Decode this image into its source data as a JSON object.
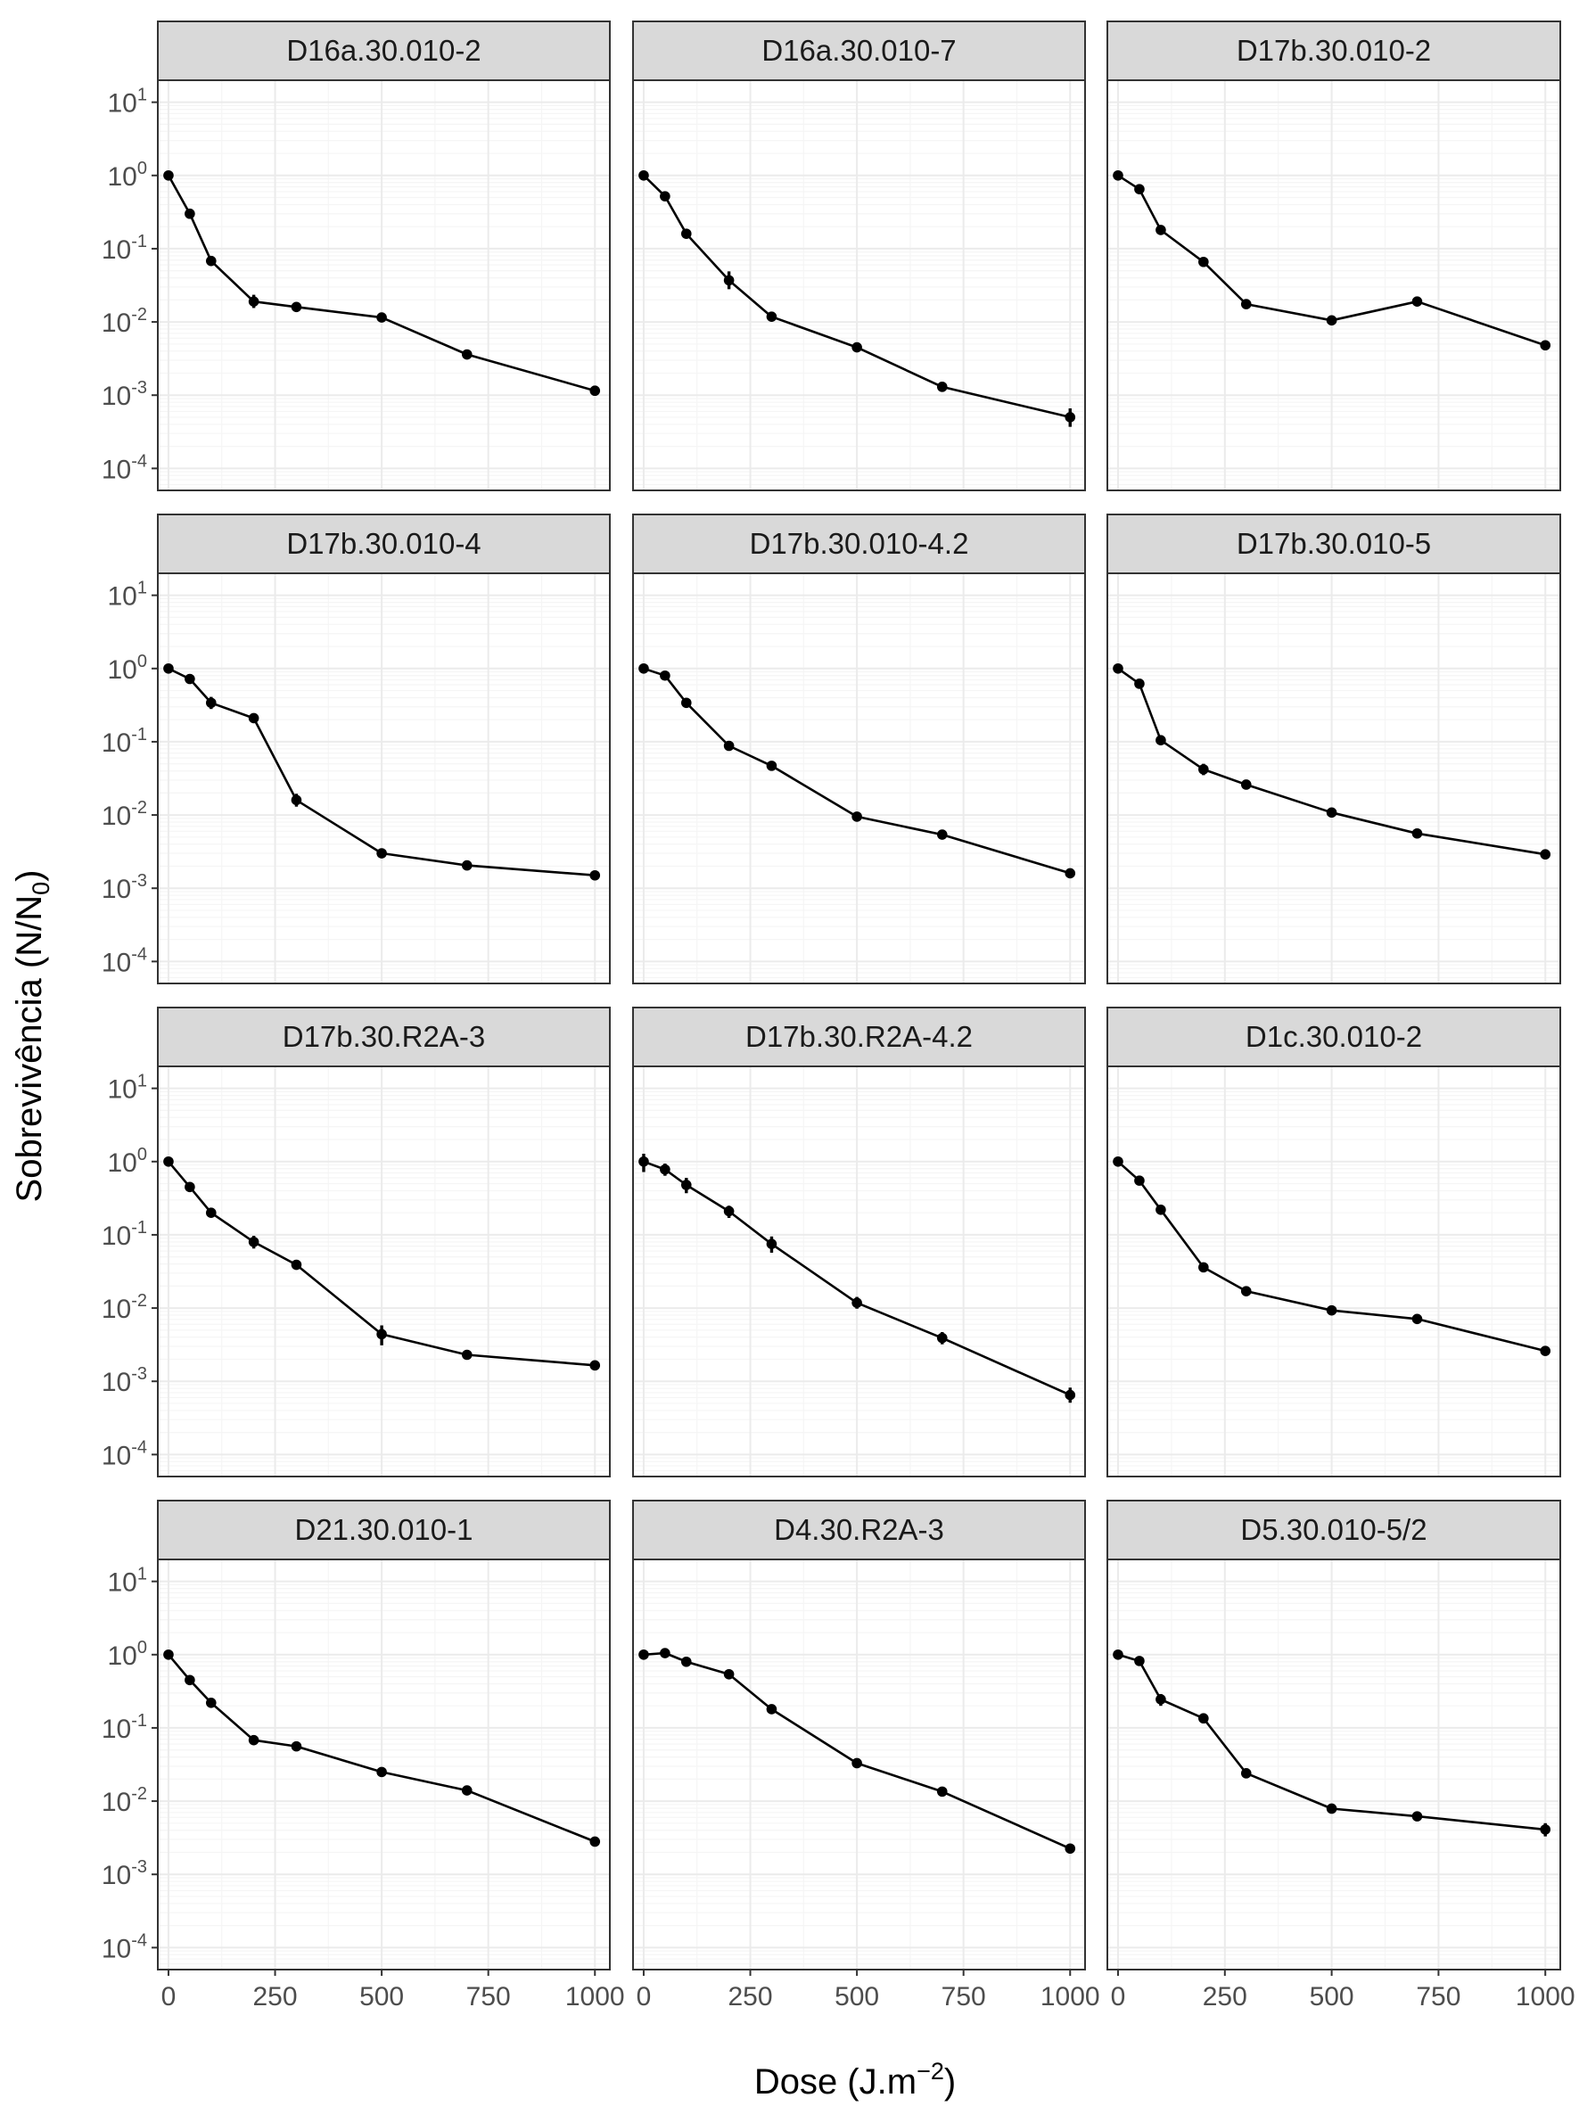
{
  "chart_data": {
    "type": "line",
    "facet_layout": {
      "nrow": 4,
      "ncol": 3,
      "shared_axes": true
    },
    "xlabel": "Dose (J.m⁻²)",
    "ylabel": "Sobrevivência (N/N₀)",
    "xlabel_parts": {
      "base": "Dose (J.m",
      "sup": "−2",
      "close": ")"
    },
    "ylabel_parts": {
      "base": "Sobrevivência (N/N",
      "sub": "0",
      "close": ")"
    },
    "x_scale": "linear",
    "y_scale": "log10",
    "xlim": [
      -25,
      1035
    ],
    "ylim_log10": [
      -4.3,
      1.3
    ],
    "x_ticks": [
      0,
      250,
      500,
      750,
      1000
    ],
    "x_tick_labels": [
      "0",
      "250",
      "500",
      "750",
      "1000"
    ],
    "y_ticks_log10": [
      -4,
      -3,
      -2,
      -1,
      0,
      1
    ],
    "y_tick_label_base": "10",
    "y_tick_label_exponents": [
      "-4",
      "-3",
      "-2",
      "-1",
      "0",
      "1"
    ],
    "grid": true,
    "legend": "none",
    "colors": {
      "line": "#000000",
      "point": "#000000",
      "strip_fill": "#d9d9d9",
      "panel_border": "#333333",
      "grid_major": "#ebebeb",
      "grid_minor": "#f5f5f5"
    },
    "x": [
      0,
      50,
      100,
      200,
      300,
      500,
      700,
      1000
    ],
    "panels": [
      {
        "name": "D16a.30.010-2",
        "values": [
          1.0,
          0.3,
          0.068,
          0.019,
          0.016,
          0.0115,
          0.0036,
          0.00115
        ],
        "error_low": [
          1.0,
          0.3,
          0.068,
          0.0155,
          0.016,
          0.0115,
          0.0036,
          0.00098
        ],
        "error_high": [
          1.0,
          0.3,
          0.068,
          0.0235,
          0.016,
          0.0115,
          0.0036,
          0.00135
        ]
      },
      {
        "name": "D16a.30.010-7",
        "values": [
          1.0,
          0.52,
          0.16,
          0.037,
          0.0118,
          0.0045,
          0.0013,
          0.0005
        ],
        "error_low": [
          1.0,
          0.52,
          0.16,
          0.028,
          0.0118,
          0.0045,
          0.0013,
          0.00037
        ],
        "error_high": [
          1.0,
          0.52,
          0.16,
          0.049,
          0.0118,
          0.0045,
          0.0013,
          0.00066
        ]
      },
      {
        "name": "D17b.30.010-2",
        "values": [
          1.0,
          0.65,
          0.18,
          0.066,
          0.0175,
          0.0105,
          0.019,
          0.0048
        ],
        "error_low": [
          1.0,
          0.65,
          0.18,
          0.066,
          0.0175,
          0.0105,
          0.019,
          0.0048
        ],
        "error_high": [
          1.0,
          0.65,
          0.18,
          0.066,
          0.0175,
          0.0105,
          0.019,
          0.0048
        ]
      },
      {
        "name": "D17b.30.010-4",
        "values": [
          1.0,
          0.72,
          0.34,
          0.21,
          0.016,
          0.003,
          0.00205,
          0.0015
        ],
        "error_low": [
          1.0,
          0.72,
          0.28,
          0.21,
          0.013,
          0.003,
          0.00205,
          0.0015
        ],
        "error_high": [
          1.0,
          0.72,
          0.41,
          0.21,
          0.0195,
          0.003,
          0.00205,
          0.0015
        ]
      },
      {
        "name": "D17b.30.010-4.2",
        "values": [
          1.0,
          0.8,
          0.34,
          0.088,
          0.047,
          0.0095,
          0.0054,
          0.0016
        ],
        "error_low": [
          1.0,
          0.8,
          0.34,
          0.088,
          0.047,
          0.0095,
          0.0054,
          0.0016
        ],
        "error_high": [
          1.0,
          0.8,
          0.34,
          0.088,
          0.047,
          0.0095,
          0.0054,
          0.0016
        ]
      },
      {
        "name": "D17b.30.010-5",
        "values": [
          1.0,
          0.62,
          0.105,
          0.042,
          0.026,
          0.0108,
          0.0056,
          0.0029
        ],
        "error_low": [
          1.0,
          0.62,
          0.105,
          0.035,
          0.026,
          0.0108,
          0.0056,
          0.0029
        ],
        "error_high": [
          1.0,
          0.62,
          0.105,
          0.05,
          0.026,
          0.0108,
          0.0056,
          0.0029
        ]
      },
      {
        "name": "D17b.30.R2A-3",
        "values": [
          1.0,
          0.45,
          0.2,
          0.08,
          0.039,
          0.0044,
          0.0023,
          0.00165
        ],
        "error_low": [
          1.0,
          0.45,
          0.2,
          0.065,
          0.039,
          0.0031,
          0.0023,
          0.00165
        ],
        "error_high": [
          1.0,
          0.45,
          0.2,
          0.097,
          0.039,
          0.0058,
          0.0023,
          0.00165
        ]
      },
      {
        "name": "D17b.30.R2A-4.2",
        "values": [
          1.0,
          0.78,
          0.48,
          0.21,
          0.075,
          0.0118,
          0.0039,
          0.00065
        ],
        "error_low": [
          0.72,
          0.64,
          0.37,
          0.17,
          0.057,
          0.0098,
          0.0032,
          0.00051
        ],
        "error_high": [
          1.28,
          0.94,
          0.6,
          0.25,
          0.095,
          0.0142,
          0.0047,
          0.00082
        ]
      },
      {
        "name": "D1c.30.010-2",
        "values": [
          1.0,
          0.55,
          0.22,
          0.036,
          0.017,
          0.0093,
          0.0071,
          0.0026
        ],
        "error_low": [
          1.0,
          0.55,
          0.22,
          0.036,
          0.017,
          0.0093,
          0.0071,
          0.0026
        ],
        "error_high": [
          1.0,
          0.55,
          0.22,
          0.036,
          0.017,
          0.0093,
          0.0071,
          0.0026
        ]
      },
      {
        "name": "D21.30.010-1",
        "values": [
          1.0,
          0.45,
          0.22,
          0.068,
          0.056,
          0.025,
          0.014,
          0.0028
        ],
        "error_low": [
          1.0,
          0.45,
          0.22,
          0.068,
          0.056,
          0.025,
          0.014,
          0.0028
        ],
        "error_high": [
          1.0,
          0.45,
          0.22,
          0.068,
          0.056,
          0.025,
          0.014,
          0.0028
        ]
      },
      {
        "name": "D4.30.R2A-3",
        "values": [
          1.0,
          1.05,
          0.8,
          0.54,
          0.18,
          0.033,
          0.0135,
          0.00225
        ],
        "error_low": [
          1.0,
          1.05,
          0.8,
          0.54,
          0.18,
          0.033,
          0.0135,
          0.00225
        ],
        "error_high": [
          1.0,
          1.05,
          0.8,
          0.54,
          0.18,
          0.033,
          0.0135,
          0.00225
        ]
      },
      {
        "name": "D5.30.010-5/2",
        "values": [
          1.0,
          0.82,
          0.245,
          0.135,
          0.024,
          0.0079,
          0.0062,
          0.0041
        ],
        "error_low": [
          1.0,
          0.82,
          0.2,
          0.135,
          0.0205,
          0.0079,
          0.0062,
          0.0033
        ],
        "error_high": [
          1.0,
          0.82,
          0.29,
          0.135,
          0.028,
          0.0079,
          0.0062,
          0.005
        ]
      }
    ]
  }
}
